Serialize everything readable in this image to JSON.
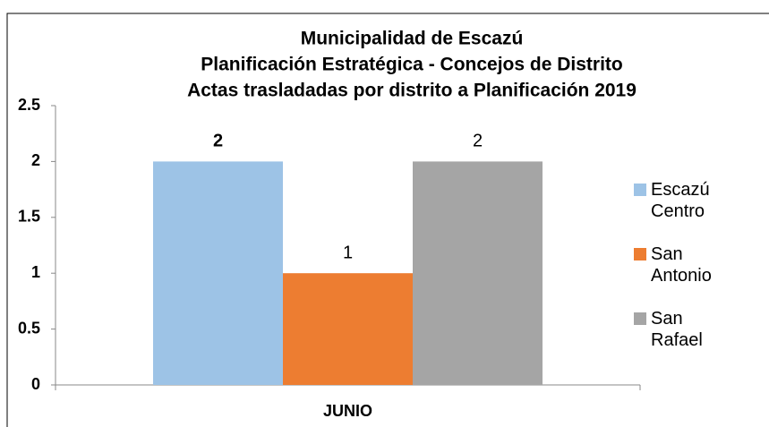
{
  "chart_data": {
    "type": "bar",
    "title": [
      "Municipalidad de Escazú",
      "Planificación Estratégica - Concejos de Distrito",
      "Actas trasladadas por distrito a Planificación 2019"
    ],
    "categories": [
      "JUNIO"
    ],
    "series": [
      {
        "name": "Escazú Centro",
        "color": "#9dc3e6",
        "values": [
          2
        ]
      },
      {
        "name": "San Antonio",
        "color": "#ed7d31",
        "values": [
          1
        ]
      },
      {
        "name": "San Rafael",
        "color": "#a5a5a5",
        "values": [
          2
        ]
      }
    ],
    "ylim": [
      0,
      2.5
    ],
    "yticks": [
      0,
      0.5,
      1,
      1.5,
      2,
      2.5
    ],
    "grid": false,
    "legend": "right"
  }
}
